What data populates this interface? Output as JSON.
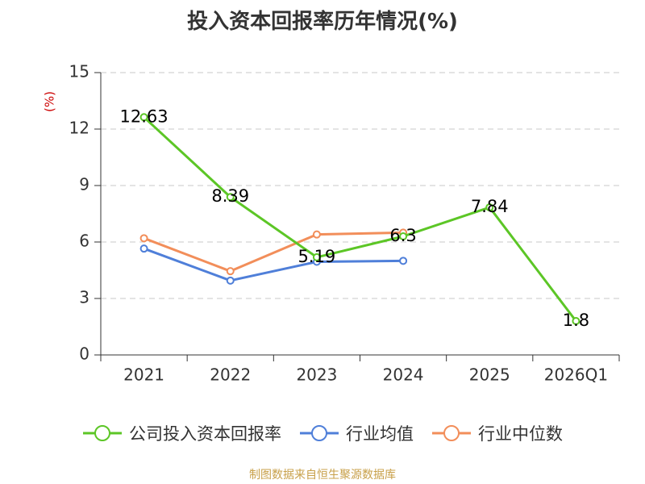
{
  "chart_data": {
    "type": "line",
    "title": "投入资本回报率历年情况(%)",
    "ylabel": "(%)",
    "xlabel": "",
    "categories": [
      "2021",
      "2022",
      "2023",
      "2024",
      "2025",
      "2026Q1"
    ],
    "ylim": [
      0,
      15
    ],
    "yticks": [
      0,
      3,
      6,
      9,
      12,
      15
    ],
    "grid": true,
    "legend_position": "bottom",
    "series": [
      {
        "name": "公司投入资本回报率",
        "color": "#5cc626",
        "values": [
          12.63,
          8.39,
          5.19,
          6.3,
          7.84,
          1.8
        ],
        "labels": [
          "12.63",
          "8.39",
          "5.19",
          "6.3",
          "7.84",
          "1.8"
        ]
      },
      {
        "name": "行业均值",
        "color": "#4f7fd9",
        "values": [
          5.65,
          3.95,
          4.95,
          5.0,
          null,
          null
        ]
      },
      {
        "name": "行业中位数",
        "color": "#f28e5a",
        "values": [
          6.2,
          4.45,
          6.4,
          6.5,
          null,
          null
        ]
      }
    ]
  },
  "source_text": "制图数据来自恒生聚源数据库"
}
